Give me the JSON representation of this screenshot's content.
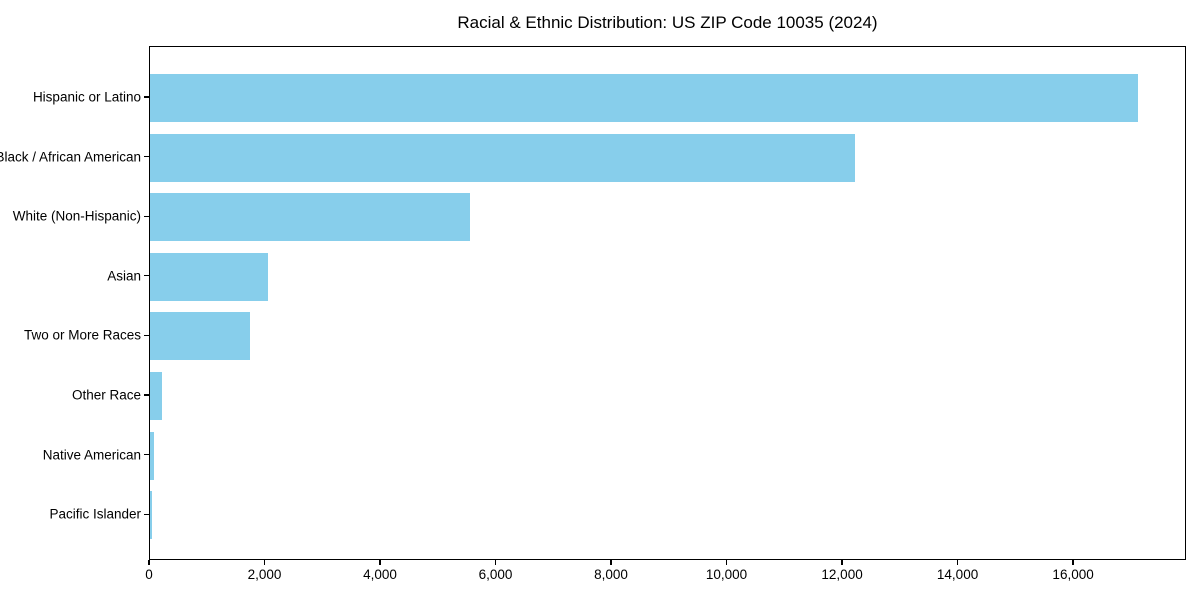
{
  "chart_data": {
    "type": "bar",
    "orientation": "horizontal",
    "title": "Racial & Ethnic Distribution: US ZIP Code 10035 (2024)",
    "categories": [
      "Hispanic or Latino",
      "Black / African American",
      "White (Non-Hispanic)",
      "Asian",
      "Two or More Races",
      "Other Race",
      "Native American",
      "Pacific Islander"
    ],
    "values": [
      17100,
      12200,
      5540,
      2040,
      1730,
      200,
      70,
      35
    ],
    "bar_color": "#87CEEB",
    "xlabel": "",
    "ylabel": "",
    "xlim": [
      0,
      17955
    ],
    "x_ticks": [
      0,
      2000,
      4000,
      6000,
      8000,
      10000,
      12000,
      14000,
      16000
    ],
    "x_tick_labels": [
      "0",
      "2,000",
      "4,000",
      "6,000",
      "8,000",
      "10,000",
      "12,000",
      "14,000",
      "16,000"
    ],
    "grid": false,
    "legend_position": "none",
    "text_color": "#000000",
    "spine_color": "#000000"
  }
}
